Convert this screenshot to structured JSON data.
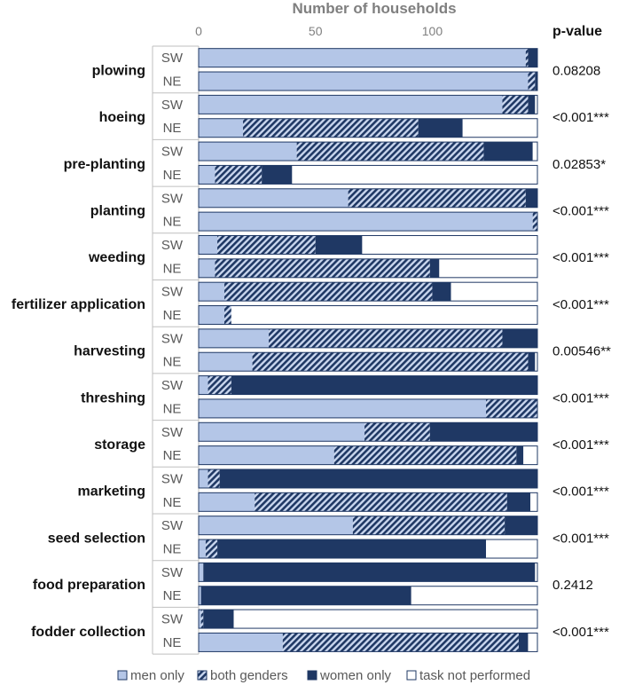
{
  "chart_data": {
    "type": "bar",
    "stacked": true,
    "orientation": "horizontal",
    "title": "",
    "xlabel": "Number of households",
    "xlim": [
      0,
      145
    ],
    "xticks": [
      "0",
      "50",
      "100"
    ],
    "xtick_values": [
      0,
      50,
      100
    ],
    "grid": false,
    "legend_position": "bottom",
    "pvalue_header": "p-value",
    "series": [
      {
        "name": "men only",
        "color": "#b4c6e7",
        "pattern": "solid"
      },
      {
        "name": "both genders",
        "color": "#1f3864",
        "pattern": "hatched"
      },
      {
        "name": "women only",
        "color": "#1f3864",
        "pattern": "solid"
      },
      {
        "name": "task not performed",
        "color": "#ffffff",
        "pattern": "empty"
      }
    ],
    "tasks": [
      {
        "task": "plowing",
        "p_value": "0.08208",
        "rows": [
          {
            "region": "SW",
            "values": [
              140,
              1,
              4,
              0
            ]
          },
          {
            "region": "NE",
            "values": [
              141,
              3,
              1,
              0
            ]
          }
        ]
      },
      {
        "task": "hoeing",
        "p_value": "<0.001***",
        "rows": [
          {
            "region": "SW",
            "values": [
              130,
              11,
              3,
              1
            ]
          },
          {
            "region": "NE",
            "values": [
              19,
              75,
              19,
              32
            ]
          }
        ]
      },
      {
        "task": "pre-planting",
        "p_value": "0.02853*",
        "rows": [
          {
            "region": "SW",
            "values": [
              42,
              80,
              21,
              2
            ]
          },
          {
            "region": "NE",
            "values": [
              7,
              20,
              13,
              105
            ]
          }
        ]
      },
      {
        "task": "planting",
        "p_value": "<0.001***",
        "rows": [
          {
            "region": "SW",
            "values": [
              64,
              76,
              5,
              0
            ]
          },
          {
            "region": "NE",
            "values": [
              143,
              2,
              0,
              0
            ]
          }
        ]
      },
      {
        "task": "weeding",
        "p_value": "<0.001***",
        "rows": [
          {
            "region": "SW",
            "values": [
              8,
              42,
              20,
              75
            ]
          },
          {
            "region": "NE",
            "values": [
              7,
              92,
              4,
              42
            ]
          }
        ]
      },
      {
        "task": "fertilizer application",
        "p_value": "<0.001***",
        "rows": [
          {
            "region": "SW",
            "values": [
              11,
              89,
              8,
              37
            ]
          },
          {
            "region": "NE",
            "values": [
              11,
              3,
              0,
              131
            ]
          }
        ]
      },
      {
        "task": "harvesting",
        "p_value": "0.00546**",
        "rows": [
          {
            "region": "SW",
            "values": [
              30,
              100,
              15,
              0
            ]
          },
          {
            "region": "NE",
            "values": [
              23,
              118,
              3,
              1
            ]
          }
        ]
      },
      {
        "task": "threshing",
        "p_value": "<0.001***",
        "rows": [
          {
            "region": "SW",
            "values": [
              4,
              10,
              131,
              0
            ]
          },
          {
            "region": "NE",
            "values": [
              123,
              22,
              0,
              0
            ]
          }
        ]
      },
      {
        "task": "storage",
        "p_value": "<0.001***",
        "rows": [
          {
            "region": "SW",
            "values": [
              71,
              28,
              46,
              0
            ]
          },
          {
            "region": "NE",
            "values": [
              58,
              78,
              3,
              6
            ]
          }
        ]
      },
      {
        "task": "marketing",
        "p_value": "<0.001***",
        "rows": [
          {
            "region": "SW",
            "values": [
              4,
              5,
              136,
              0
            ]
          },
          {
            "region": "NE",
            "values": [
              24,
              108,
              10,
              3
            ]
          }
        ]
      },
      {
        "task": "seed selection",
        "p_value": "<0.001***",
        "rows": [
          {
            "region": "SW",
            "values": [
              66,
              65,
              14,
              0
            ]
          },
          {
            "region": "NE",
            "values": [
              3,
              5,
              115,
              22
            ]
          }
        ]
      },
      {
        "task": "food preparation",
        "p_value": "0.2412",
        "rows": [
          {
            "region": "SW",
            "values": [
              2,
              0,
              142,
              1
            ]
          },
          {
            "region": "NE",
            "values": [
              1,
              0,
              90,
              54
            ]
          }
        ]
      },
      {
        "task": "fodder collection",
        "p_value": "<0.001***",
        "rows": [
          {
            "region": "SW",
            "values": [
              1,
              1,
              13,
              130
            ]
          },
          {
            "region": "NE",
            "values": [
              36,
              101,
              4,
              4
            ]
          }
        ]
      }
    ]
  }
}
